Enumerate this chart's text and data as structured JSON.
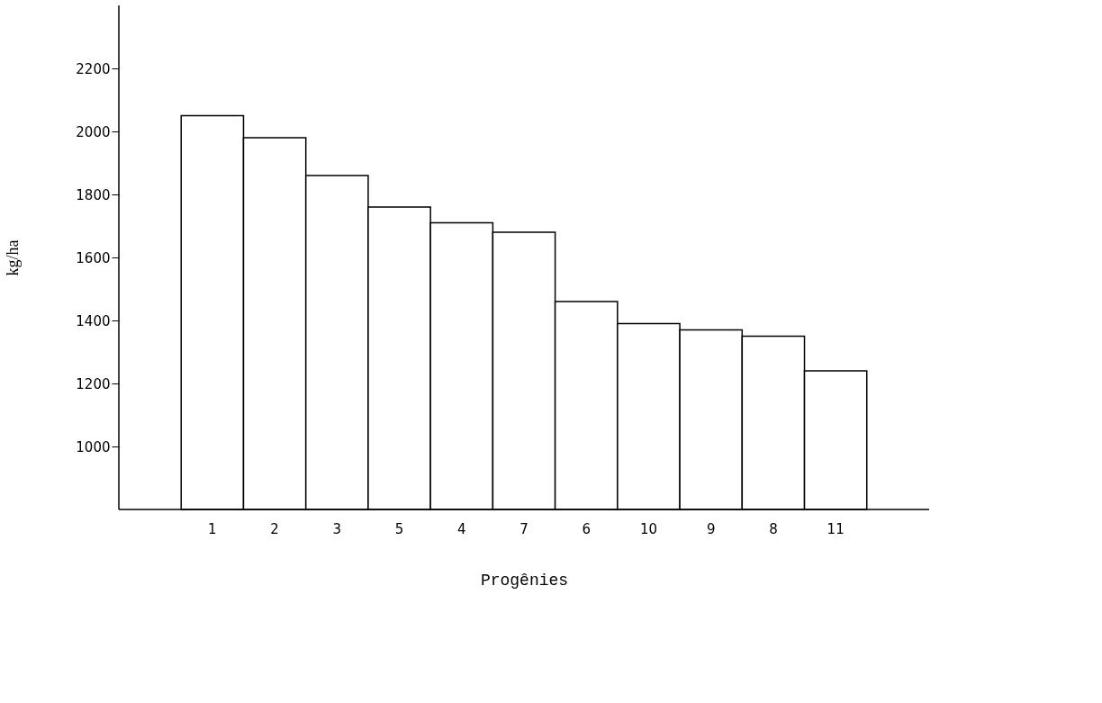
{
  "chart_data": {
    "type": "bar",
    "xlabel": "Progênies",
    "ylabel": "kg/ha",
    "categories": [
      "1",
      "2",
      "3",
      "5",
      "4",
      "7",
      "6",
      "10",
      "9",
      "8",
      "11"
    ],
    "values": [
      2050,
      1980,
      1860,
      1760,
      1710,
      1680,
      1460,
      1390,
      1370,
      1350,
      1240
    ],
    "color": "#ffffff",
    "ylim": [
      800,
      2400
    ],
    "yticks": [
      1000,
      1200,
      1400,
      1600,
      1800,
      2000,
      2200
    ],
    "grid": false
  }
}
